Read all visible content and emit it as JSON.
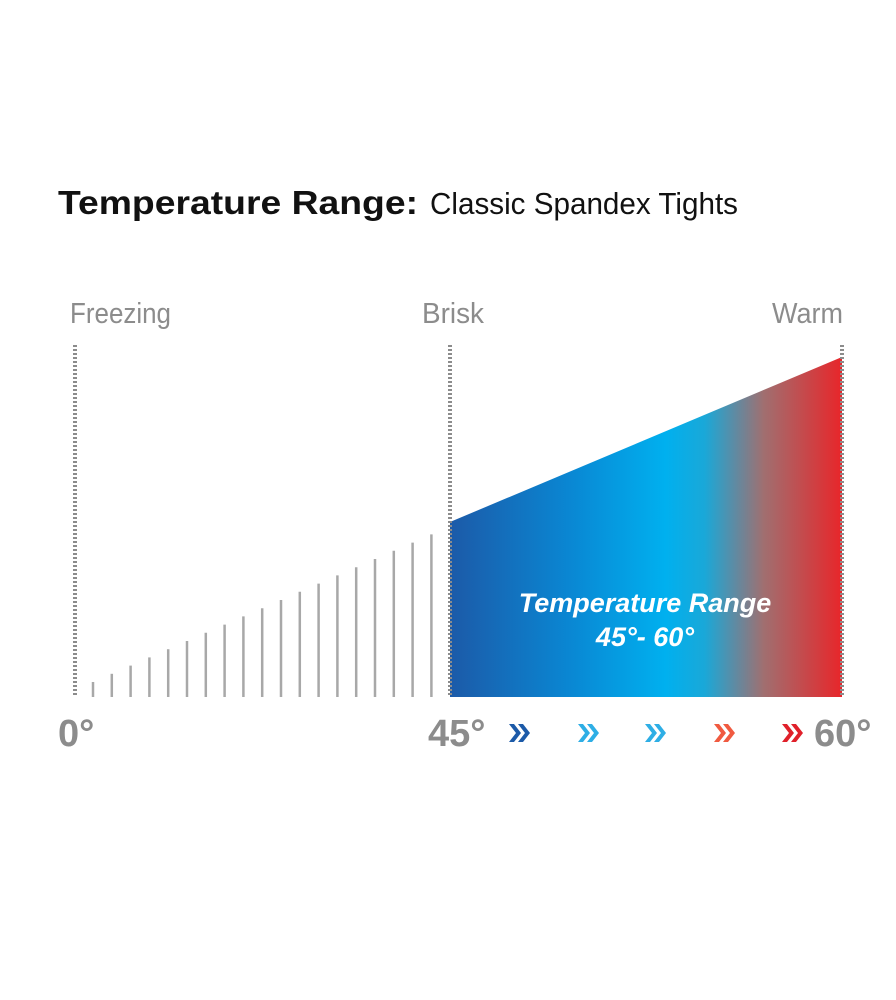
{
  "header": {
    "title": "Temperature Range:",
    "subtitle": "Classic Spandex Tights"
  },
  "zones": [
    {
      "label": "Freezing"
    },
    {
      "label": "Brisk"
    },
    {
      "label": "Warm"
    }
  ],
  "scale": [
    "0°",
    "45°",
    "60°"
  ],
  "range": {
    "label": "Temperature Range",
    "value": "45°- 60°"
  }
}
